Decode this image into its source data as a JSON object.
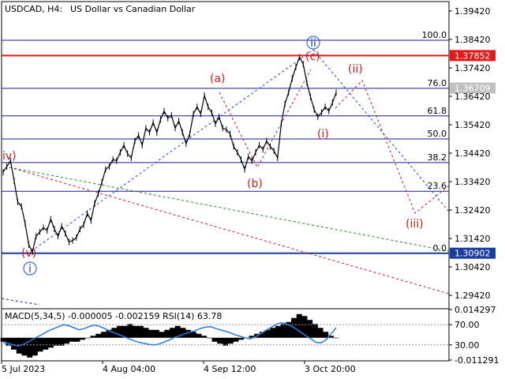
{
  "chart_title": {
    "symbol": "USDCAD, H4:",
    "description": "US Dollar vs Canadian Dollar"
  },
  "chart_data": {
    "type": "line",
    "price_axis_ticks": [
      "1.39420",
      "1.38420",
      "1.37420",
      "1.36420",
      "1.35420",
      "1.34420",
      "1.33420",
      "1.32420",
      "1.31420",
      "1.30420",
      "1.29420"
    ],
    "time_axis_ticks": [
      "5 Jul 2023",
      "4 Aug 04:00",
      "4 Sep 12:00",
      "3 Oct 20:00"
    ],
    "price_range": [
      1.2895,
      1.3975
    ],
    "bar_count": 100,
    "series": [
      {
        "values": [
          1.3375,
          1.3395,
          1.3415,
          1.3345,
          1.327,
          1.3255,
          1.3195,
          1.312,
          1.3095,
          1.315,
          1.3165,
          1.318,
          1.317,
          1.321,
          1.3175,
          1.315,
          1.3185,
          1.316,
          1.313,
          1.3135,
          1.3145,
          1.3175,
          1.319,
          1.323,
          1.3205,
          1.3265,
          1.33,
          1.334,
          1.3385,
          1.3395,
          1.342,
          1.3415,
          1.3445,
          1.347,
          1.344,
          1.3425,
          1.3485,
          1.3505,
          1.347,
          1.353,
          1.3515,
          1.355,
          1.3515,
          1.356,
          1.359,
          1.3565,
          1.3575,
          1.353,
          1.3555,
          1.3515,
          1.3475,
          1.351,
          1.358,
          1.3605,
          1.358,
          1.3645,
          1.3605,
          1.3585,
          1.3545,
          1.357,
          1.353,
          1.3525,
          1.351,
          1.3465,
          1.3445,
          1.342,
          1.3385,
          1.343,
          1.3415,
          1.3445,
          1.347,
          1.3455,
          1.3485,
          1.3465,
          1.345,
          1.3425,
          1.3545,
          1.3615,
          1.3655,
          1.3705,
          1.3745,
          1.378,
          1.3755,
          1.369,
          1.364,
          1.3595,
          1.357,
          1.3585,
          1.3605,
          1.359,
          1.362,
          1.3655
        ]
      }
    ],
    "wave_labels_red": [
      "(a)",
      "(b)",
      "(c)",
      "(i)",
      "(ii)",
      "(iii)",
      "(v)"
    ],
    "wave_labels_blue": [
      "iv)",
      "ii",
      "i"
    ],
    "fibonacci": {
      "levels": [
        {
          "label": "100.0",
          "price": 1.3839
        },
        {
          "label": "76.0",
          "price": 1.367
        },
        {
          "label": "61.8",
          "price": 1.3573
        },
        {
          "label": "50.0",
          "price": 1.3492
        },
        {
          "label": "38.2",
          "price": 1.3409
        },
        {
          "label": "23.6",
          "price": 1.3308
        },
        {
          "label": "0.0",
          "price": 1.309
        }
      ]
    },
    "price_tags": [
      {
        "text": "1.37852",
        "price": 1.37852,
        "color": "#e31a1a"
      },
      {
        "text": "1.36709",
        "price": 1.36709,
        "color": "#c0c0c0"
      },
      {
        "text": "1.30902",
        "price": 1.30902,
        "color": "#1a3ba0"
      }
    ],
    "indicator": {
      "label": "MACD(5,34,5) -0.000005 -0.002159 RSI(14) 63.78",
      "axis_ticks": [
        "0.014297",
        "70.00",
        "30.00",
        "-0.011291"
      ],
      "macd": [
        -0.002,
        -0.004,
        -0.006,
        -0.008,
        -0.009,
        -0.01,
        -0.009,
        -0.007,
        -0.006,
        -0.005,
        -0.004,
        -0.004,
        -0.003,
        -0.002,
        -0.002,
        -0.001,
        0.0,
        0.001,
        0.002,
        0.003,
        0.004,
        0.005,
        0.006,
        0.006,
        0.007,
        0.006,
        0.006,
        0.005,
        0.004,
        0.004,
        0.003,
        0.004,
        0.005,
        0.006,
        0.005,
        0.004,
        0.003,
        0.002,
        0.001,
        0.0,
        -0.002,
        -0.003,
        -0.004,
        -0.003,
        -0.002,
        -0.001,
        0.0,
        0.001,
        0.002,
        0.003,
        0.004,
        0.005,
        0.006,
        0.007,
        0.008,
        0.01,
        0.012,
        0.011,
        0.009,
        0.007,
        0.005,
        0.003,
        0.001,
        0.0
      ],
      "rsi": [
        35,
        33,
        30,
        28,
        31,
        36,
        42,
        47,
        52,
        58,
        62,
        66,
        70,
        68,
        64,
        60,
        62,
        66,
        69,
        67,
        63,
        58,
        54,
        50,
        46,
        42,
        38,
        35,
        33,
        31,
        30,
        32,
        36,
        40,
        45,
        48,
        52,
        55,
        58,
        62,
        65,
        66,
        63,
        60,
        57,
        54,
        50,
        47,
        44,
        42,
        46,
        52,
        58,
        64,
        70,
        74,
        72,
        68,
        62,
        55,
        48,
        42,
        35,
        34,
        40,
        52,
        64
      ]
    }
  }
}
